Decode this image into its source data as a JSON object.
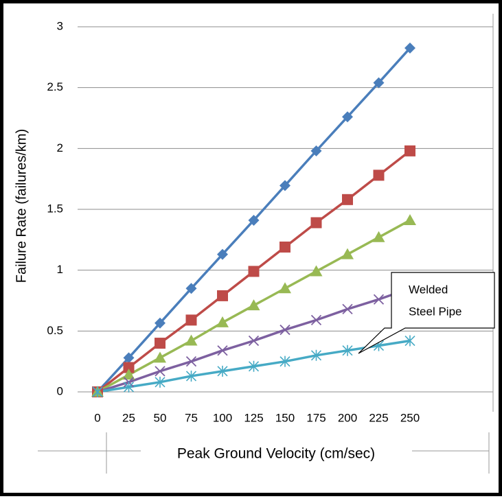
{
  "chart_data": {
    "type": "line",
    "y_label": "Failure Rate (failures/km)",
    "x_label": "Peak Ground Velocity (cm/sec)",
    "annotation": [
      "Welded",
      "Steel Pipe"
    ],
    "categories": [
      "0",
      "25",
      "50",
      "75",
      "100",
      "125",
      "150",
      "175",
      "200",
      "225",
      "250"
    ],
    "ylim": [
      0,
      3
    ],
    "yticks": [
      0,
      0.5,
      1,
      1.5,
      2,
      2.5,
      3
    ],
    "grid": true,
    "series": [
      {
        "color": "#4a7ebb",
        "marker": "diamond",
        "values": [
          0,
          0.28,
          0.565,
          0.85,
          1.13,
          1.41,
          1.695,
          1.98,
          2.26,
          2.54,
          2.825
        ]
      },
      {
        "color": "#be4b48",
        "marker": "square",
        "values": [
          0,
          0.2,
          0.4,
          0.59,
          0.79,
          0.99,
          1.19,
          1.39,
          1.58,
          1.78,
          1.98
        ]
      },
      {
        "color": "#98b954",
        "marker": "triangle",
        "values": [
          0,
          0.14,
          0.28,
          0.42,
          0.57,
          0.71,
          0.85,
          0.99,
          1.13,
          1.27,
          1.41
        ]
      },
      {
        "color": "#7d60a0",
        "marker": "x",
        "values": [
          0,
          0.08,
          0.17,
          0.25,
          0.34,
          0.42,
          0.51,
          0.59,
          0.68,
          0.76,
          0.85
        ]
      },
      {
        "color": "#46aac5",
        "marker": "asterisk",
        "values": [
          0,
          0.04,
          0.08,
          0.13,
          0.17,
          0.21,
          0.25,
          0.3,
          0.34,
          0.38,
          0.42
        ]
      }
    ]
  }
}
